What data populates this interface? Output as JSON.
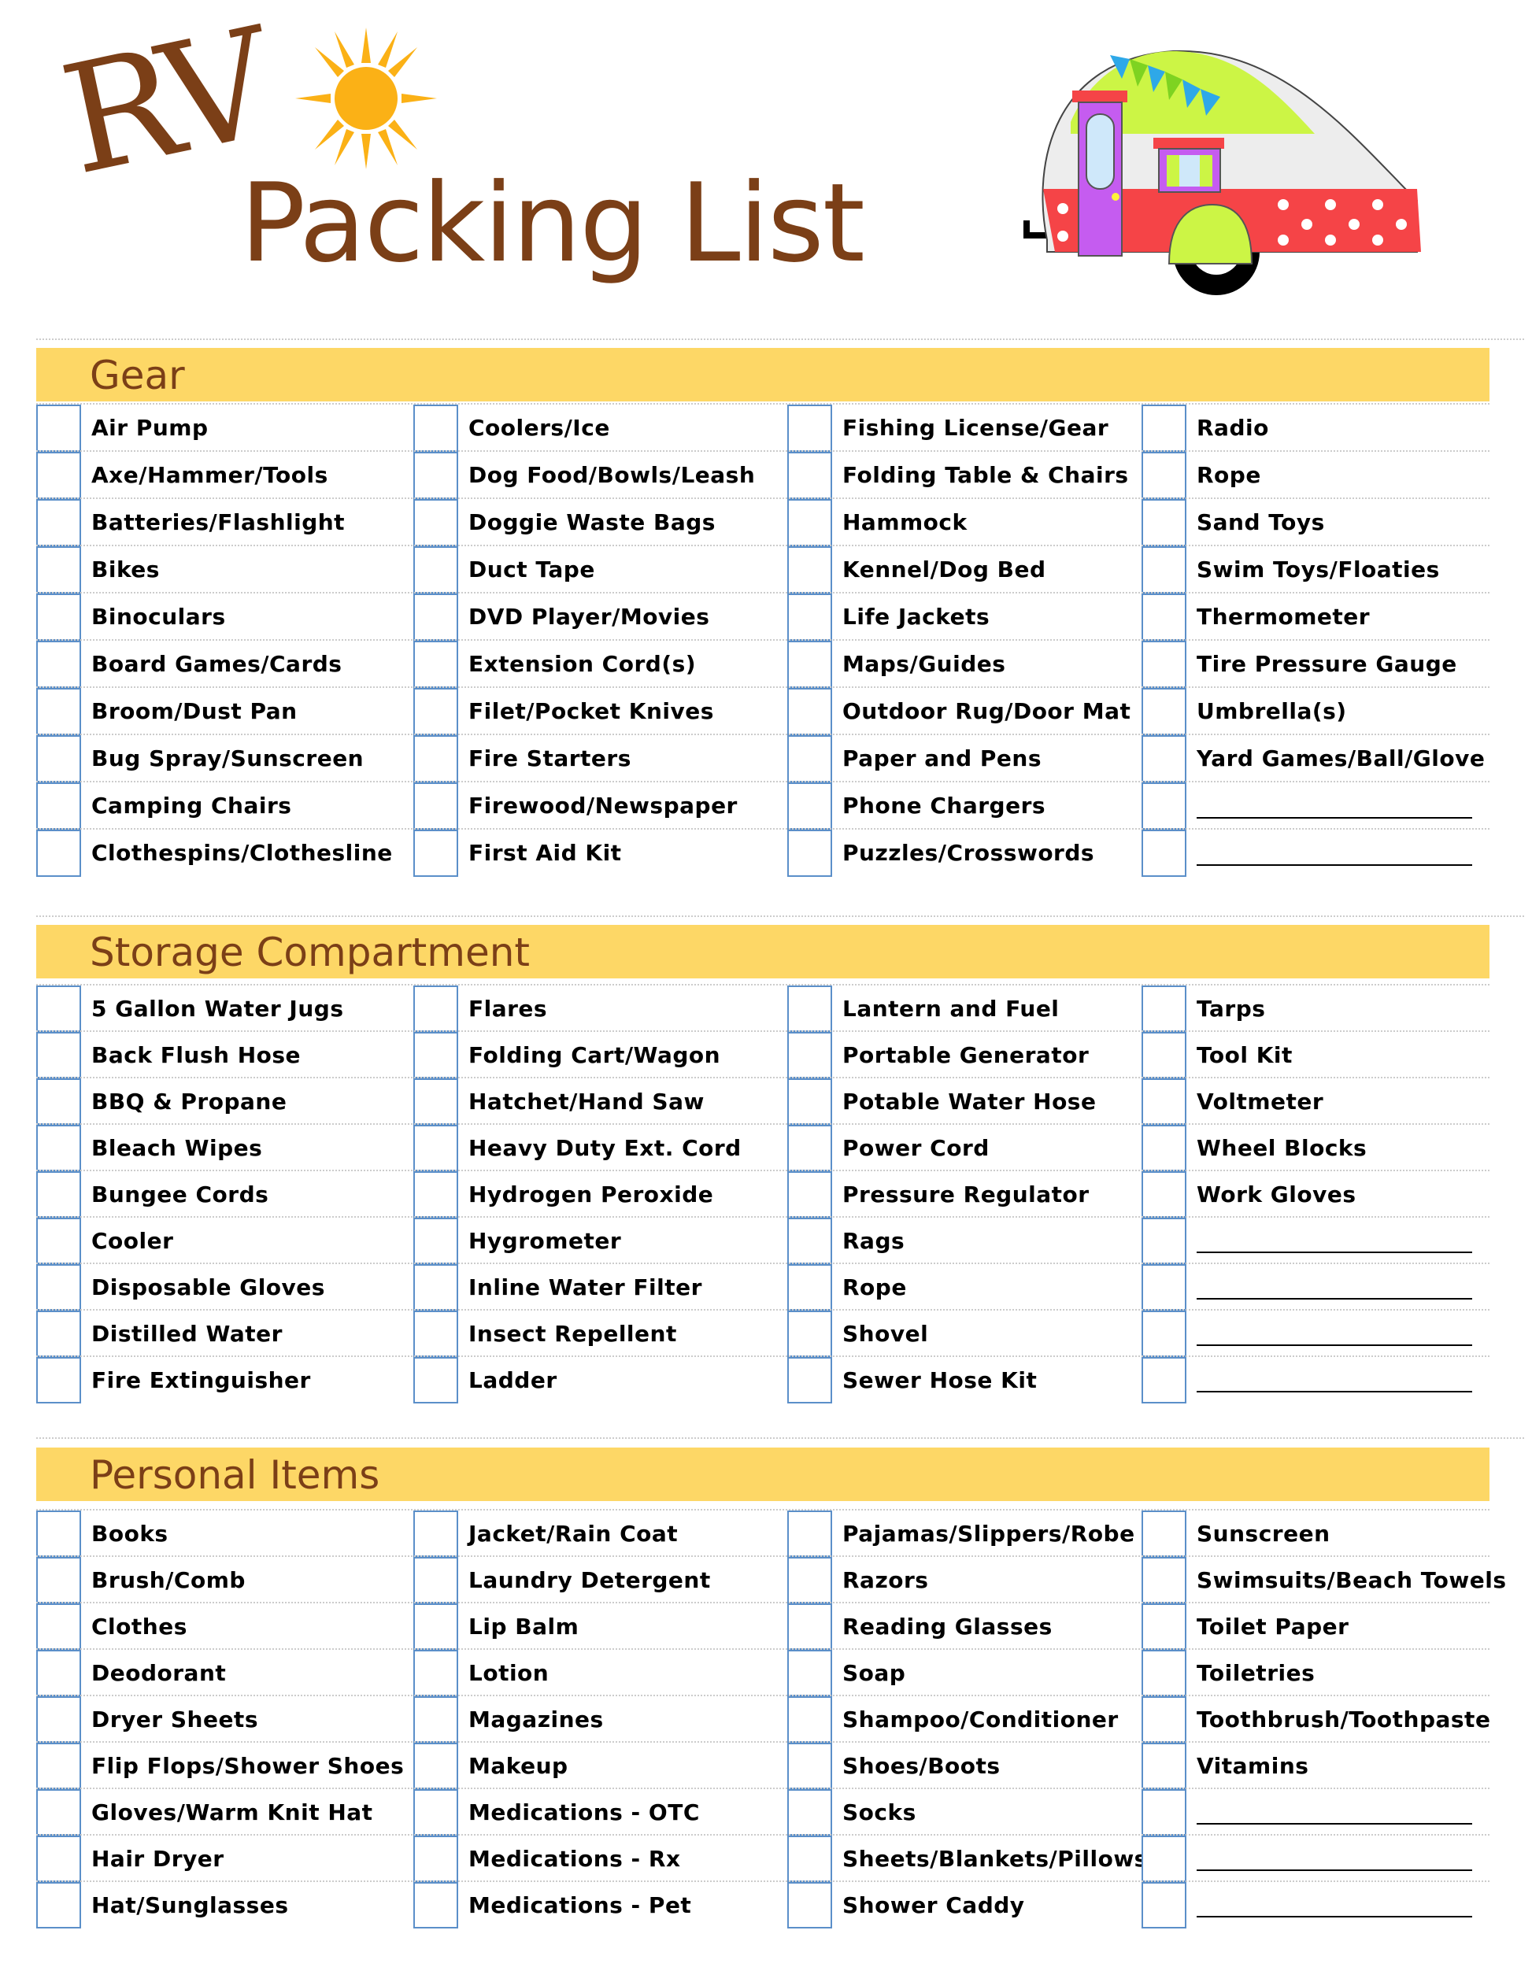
{
  "title": {
    "line1": "RV",
    "line2": "Packing List"
  },
  "colors": {
    "brown": "#7B3F17",
    "header_bar": "#FDD766",
    "checkbox": "#5B8FC9",
    "sun": "#FBB116"
  },
  "blank_line": "",
  "sections": [
    {
      "title": "Gear",
      "columns": [
        [
          "Air Pump",
          "Axe/Hammer/Tools",
          "Batteries/Flashlight",
          "Bikes",
          "Binoculars",
          "Board Games/Cards",
          "Broom/Dust Pan",
          "Bug Spray/Sunscreen",
          "Camping Chairs",
          "Clothespins/Clothesline"
        ],
        [
          "Coolers/Ice",
          "Dog Food/Bowls/Leash",
          "Doggie Waste Bags",
          "Duct Tape",
          "DVD Player/Movies",
          "Extension Cord(s)",
          "Filet/Pocket Knives",
          "Fire Starters",
          "Firewood/Newspaper",
          "First Aid Kit"
        ],
        [
          "Fishing License/Gear",
          "Folding Table & Chairs",
          "Hammock",
          "Kennel/Dog Bed",
          "Life Jackets",
          "Maps/Guides",
          "Outdoor Rug/Door Mat",
          "Paper and Pens",
          "Phone Chargers",
          "Puzzles/Crosswords"
        ],
        [
          "Radio",
          "Rope",
          "Sand Toys",
          "Swim Toys/Floaties",
          "Thermometer",
          "Tire Pressure Gauge",
          "Umbrella(s)",
          "Yard Games/Ball/Glove",
          "",
          ""
        ]
      ]
    },
    {
      "title": "Storage Compartment",
      "columns": [
        [
          "5 Gallon Water Jugs",
          "Back Flush Hose",
          "BBQ & Propane",
          "Bleach Wipes",
          "Bungee Cords",
          "Cooler",
          "Disposable Gloves",
          "Distilled Water",
          "Fire Extinguisher"
        ],
        [
          "Flares",
          "Folding Cart/Wagon",
          "Hatchet/Hand Saw",
          "Heavy Duty Ext. Cord",
          "Hydrogen Peroxide",
          "Hygrometer",
          "Inline Water Filter",
          "Insect Repellent",
          "Ladder"
        ],
        [
          "Lantern and Fuel",
          "Portable Generator",
          "Potable Water Hose",
          "Power Cord",
          "Pressure Regulator",
          "Rags",
          "Rope",
          "Shovel",
          "Sewer Hose Kit"
        ],
        [
          "Tarps",
          "Tool Kit",
          "Voltmeter",
          "Wheel Blocks",
          "Work Gloves",
          "",
          "",
          "",
          ""
        ]
      ]
    },
    {
      "title": "Personal Items",
      "columns": [
        [
          "Books",
          "Brush/Comb",
          "Clothes",
          "Deodorant",
          "Dryer Sheets",
          "Flip Flops/Shower Shoes",
          "Gloves/Warm Knit Hat",
          "Hair Dryer",
          "Hat/Sunglasses"
        ],
        [
          "Jacket/Rain Coat",
          "Laundry Detergent",
          "Lip Balm",
          "Lotion",
          "Magazines",
          "Makeup",
          "Medications - OTC",
          "Medications - Rx",
          "Medications - Pet"
        ],
        [
          "Pajamas/Slippers/Robe",
          "Razors",
          "Reading Glasses",
          "Soap",
          "Shampoo/Conditioner",
          "Shoes/Boots",
          "Socks",
          "Sheets/Blankets/Pillows",
          "Shower Caddy"
        ],
        [
          "Sunscreen",
          "Swimsuits/Beach Towels",
          "Toilet Paper",
          "Toiletries",
          "Toothbrush/Toothpaste",
          "Vitamins",
          "",
          "",
          ""
        ]
      ]
    }
  ]
}
